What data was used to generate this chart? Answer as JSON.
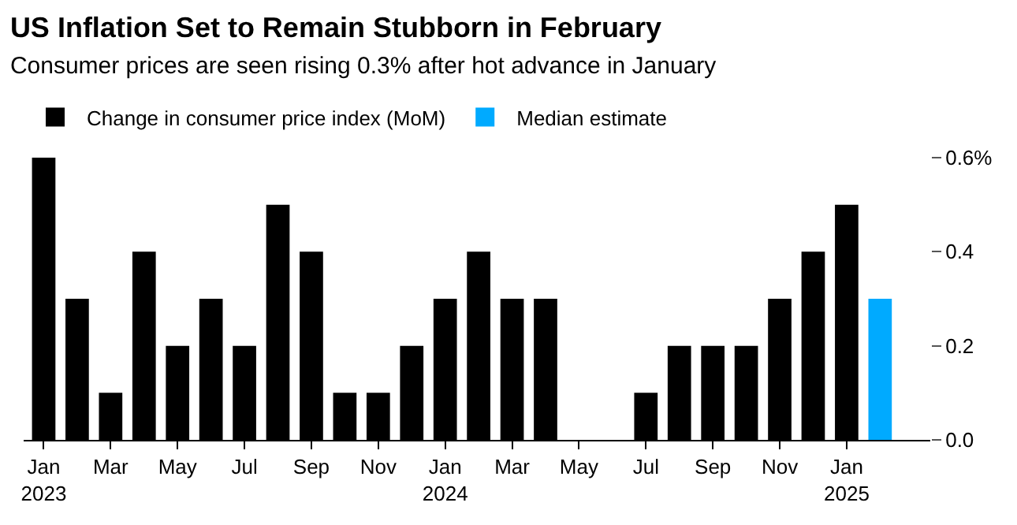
{
  "chart_data": {
    "type": "bar",
    "title": "US Inflation Set to Remain Stubborn in February",
    "subtitle": "Consumer prices are seen rising 0.3% after hot advance in January",
    "categories": [
      "Jan\n2023",
      null,
      "Mar",
      null,
      "May",
      null,
      "Jul",
      null,
      "Sep",
      null,
      "Nov",
      null,
      "Jan\n2024",
      null,
      "Mar",
      null,
      "May",
      null,
      "Jul",
      null,
      "Sep",
      null,
      "Nov",
      null,
      "Jan\n2025",
      null
    ],
    "series": [
      {
        "name": "Change in consumer price index (MoM)",
        "color": "#000000",
        "values": [
          0.6,
          0.3,
          0.1,
          0.4,
          0.2,
          0.3,
          0.2,
          0.5,
          0.4,
          0.1,
          0.1,
          0.2,
          0.3,
          0.4,
          0.3,
          0.3,
          0.0,
          0.0,
          0.1,
          0.2,
          0.2,
          0.2,
          0.3,
          0.4,
          0.5,
          null
        ]
      },
      {
        "name": "Median estimate",
        "color": "#00aaff",
        "values": [
          null,
          null,
          null,
          null,
          null,
          null,
          null,
          null,
          null,
          null,
          null,
          null,
          null,
          null,
          null,
          null,
          null,
          null,
          null,
          null,
          null,
          null,
          null,
          null,
          null,
          0.3
        ]
      }
    ],
    "ylim": [
      0,
      0.6
    ],
    "yticks": [
      {
        "value": 0,
        "label": "0.0"
      },
      {
        "value": 0.2,
        "label": "0.2"
      },
      {
        "value": 0.4,
        "label": "0.4"
      },
      {
        "value": 0.6,
        "label": "0.6%"
      }
    ],
    "legend": "top left"
  }
}
